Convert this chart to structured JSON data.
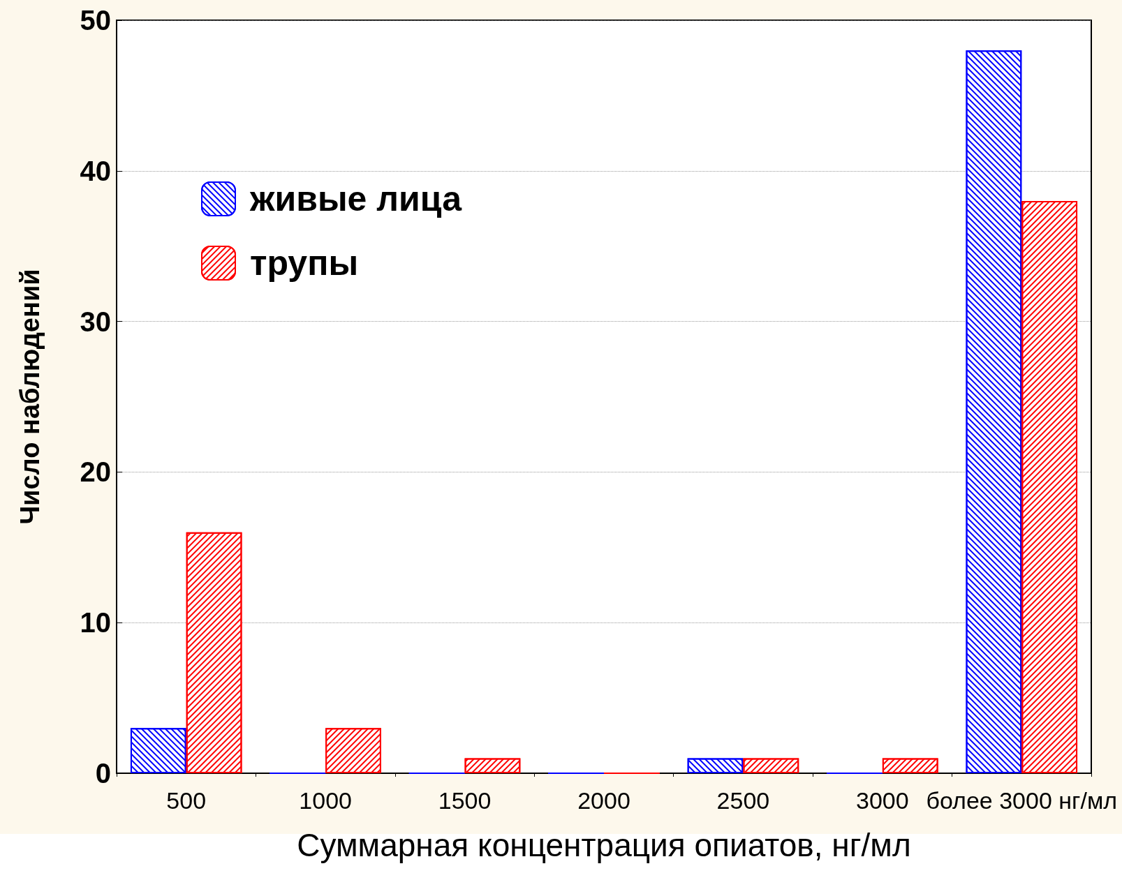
{
  "chart_data": {
    "type": "bar",
    "xlabel": "Суммарная концентрация опиатов, нг/мл",
    "ylabel": "Число наблюдений",
    "categories": [
      "500",
      "1000",
      "1500",
      "2000",
      "2500",
      "3000",
      "более 3000 нг/мл"
    ],
    "series": [
      {
        "name": "живые лица",
        "color": "#0000ff",
        "values": [
          3,
          0,
          0,
          0,
          1,
          0,
          48
        ]
      },
      {
        "name": "трупы",
        "color": "#ff0000",
        "values": [
          16,
          3,
          1,
          0,
          1,
          1,
          38
        ]
      }
    ],
    "ylim": [
      0,
      50
    ],
    "yticks": [
      0,
      10,
      20,
      30,
      40,
      50
    ],
    "grid": "y",
    "legend": "top left"
  }
}
